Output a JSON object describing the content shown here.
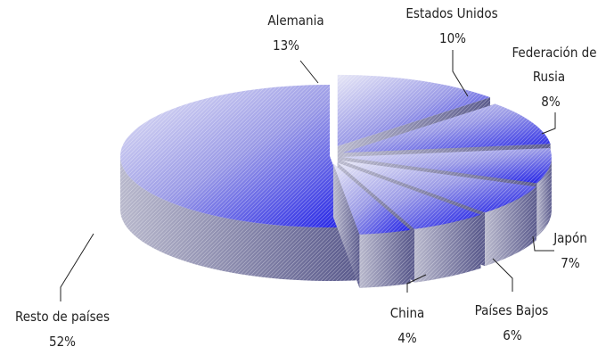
{
  "chart_data": {
    "type": "pie",
    "style": "3d-exploded",
    "slices": [
      {
        "label": "Alemania",
        "line2": "",
        "value_label": "13%",
        "value": 13
      },
      {
        "label": "Estados Unidos",
        "line2": "",
        "value_label": "10%",
        "value": 10
      },
      {
        "label": "Federación de",
        "line2": "Rusia",
        "value_label": "8%",
        "value": 8
      },
      {
        "label": "Japón",
        "line2": "",
        "value_label": "7%",
        "value": 7
      },
      {
        "label": "Países Bajos",
        "line2": "",
        "value_label": "6%",
        "value": 6
      },
      {
        "label": "China",
        "line2": "",
        "value_label": "4%",
        "value": 4
      },
      {
        "label": "Resto de países",
        "line2": "",
        "value_label": "52%",
        "value": 52
      }
    ],
    "colors": {
      "top_light": "#e6e6f6",
      "top_mid": "#9a9ae6",
      "top_dark": "#1c1ce6",
      "side_light": "#b8b8cc",
      "side_dark": "#5a5a8c",
      "hatch": "#ffffff"
    }
  }
}
